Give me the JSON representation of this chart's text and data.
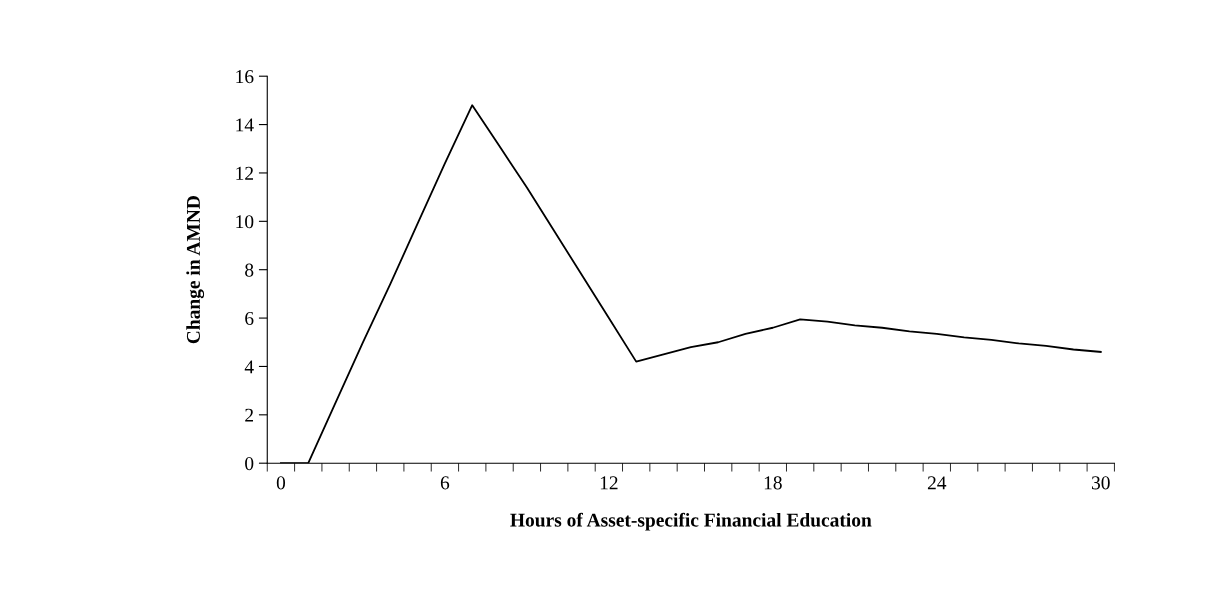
{
  "chart_data": {
    "type": "line",
    "xlabel": "Hours of Asset-specific Financial Education",
    "ylabel": "Change in AMND",
    "x": [
      0,
      1,
      2,
      3,
      4,
      5,
      6,
      7,
      8,
      9,
      10,
      11,
      12,
      13,
      14,
      15,
      16,
      17,
      18,
      19,
      20,
      21,
      22,
      23,
      24,
      25,
      26,
      27,
      28,
      29,
      30
    ],
    "series": [
      {
        "color": "#000000",
        "values": [
          0,
          0,
          2.5,
          5,
          7.4,
          9.9,
          12.4,
          14.8,
          13.1,
          11.4,
          9.6,
          7.8,
          6.0,
          4.2,
          4.5,
          4.8,
          5.0,
          5.35,
          5.6,
          5.95,
          5.85,
          5.7,
          5.6,
          5.45,
          5.35,
          5.2,
          5.1,
          4.95,
          4.85,
          4.7,
          4.6
        ]
      }
    ],
    "xlim": [
      -0.5,
      30.5
    ],
    "xticks": [
      {
        "value": -0.5,
        "label": null
      },
      0,
      {
        "value": 0.5,
        "label": null
      },
      {
        "value": 1.5,
        "label": null
      },
      {
        "value": 2.5,
        "label": null
      },
      {
        "value": 3.5,
        "label": null
      },
      {
        "value": 4.5,
        "label": null
      },
      {
        "value": 5.5,
        "label": null
      },
      6,
      {
        "value": 6.5,
        "label": null
      },
      {
        "value": 7.5,
        "label": null
      },
      {
        "value": 8.5,
        "label": null
      },
      {
        "value": 9.5,
        "label": null
      },
      {
        "value": 10.5,
        "label": null
      },
      {
        "value": 11.5,
        "label": null
      },
      12,
      {
        "value": 12.5,
        "label": null
      },
      {
        "value": 13.5,
        "label": null
      },
      {
        "value": 14.5,
        "label": null
      },
      {
        "value": 15.5,
        "label": null
      },
      {
        "value": 16.5,
        "label": null
      },
      {
        "value": 17.5,
        "label": null
      },
      18,
      {
        "value": 18.5,
        "label": null
      },
      {
        "value": 19.5,
        "label": null
      },
      {
        "value": 20.5,
        "label": null
      },
      {
        "value": 21.5,
        "label": null
      },
      {
        "value": 22.5,
        "label": null
      },
      {
        "value": 23.5,
        "label": null
      },
      24,
      {
        "value": 24.5,
        "label": null
      },
      {
        "value": 25.5,
        "label": null
      },
      {
        "value": 26.5,
        "label": null
      },
      {
        "value": 27.5,
        "label": null
      },
      {
        "value": 28.5,
        "label": null
      },
      {
        "value": 29.5,
        "label": null
      },
      30,
      {
        "value": 30.5,
        "label": null
      }
    ],
    "ylim": [
      0,
      16
    ],
    "yticks": [
      0,
      2,
      4,
      6,
      8,
      10,
      12,
      14,
      16
    ],
    "grid": false,
    "legend": false,
    "marker": "none",
    "line_style": "solid"
  }
}
